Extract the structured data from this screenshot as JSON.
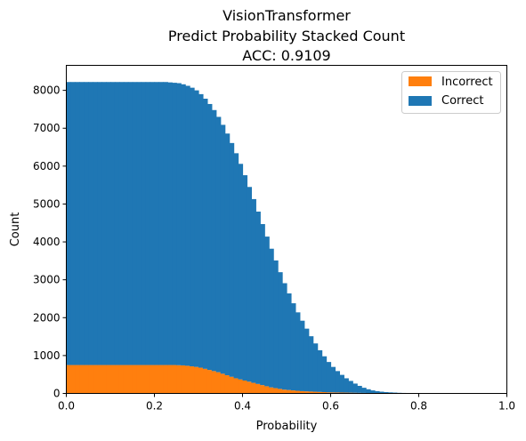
{
  "chart_data": {
    "type": "bar",
    "stacked": true,
    "title_lines": [
      "VisionTransformer",
      "Predict Probability Stacked Count",
      "ACC: 0.9109"
    ],
    "xlabel": "Probability",
    "ylabel": "Count",
    "xlim": [
      0.0,
      1.0
    ],
    "ylim": [
      0,
      8660
    ],
    "xticks": [
      "0.0",
      "0.2",
      "0.4",
      "0.6",
      "0.8",
      "1.0"
    ],
    "yticks": [
      "0",
      "1000",
      "2000",
      "3000",
      "4000",
      "5000",
      "6000",
      "7000",
      "8000"
    ],
    "xtick_values": [
      0.0,
      0.2,
      0.4,
      0.6,
      0.8,
      1.0
    ],
    "ytick_values": [
      0,
      1000,
      2000,
      3000,
      4000,
      5000,
      6000,
      7000,
      8000
    ],
    "grid": false,
    "legend_position": "top-right",
    "bin_width": 0.01,
    "x": [
      0.0,
      0.01,
      0.02,
      0.03,
      0.04,
      0.05,
      0.06,
      0.07,
      0.08,
      0.09,
      0.1,
      0.11,
      0.12,
      0.13,
      0.14,
      0.15,
      0.16,
      0.17,
      0.18,
      0.19,
      0.2,
      0.21,
      0.22,
      0.23,
      0.24,
      0.25,
      0.26,
      0.27,
      0.28,
      0.29,
      0.3,
      0.31,
      0.32,
      0.33,
      0.34,
      0.35,
      0.36,
      0.37,
      0.38,
      0.39,
      0.4,
      0.41,
      0.42,
      0.43,
      0.44,
      0.45,
      0.46,
      0.47,
      0.48,
      0.49,
      0.5,
      0.51,
      0.52,
      0.53,
      0.54,
      0.55,
      0.56,
      0.57,
      0.58,
      0.59,
      0.6,
      0.61,
      0.62,
      0.63,
      0.64,
      0.65,
      0.66,
      0.67,
      0.68,
      0.69,
      0.7,
      0.71,
      0.72,
      0.73,
      0.74,
      0.75,
      0.76,
      0.77,
      0.78,
      0.79,
      0.8,
      0.81,
      0.82,
      0.83,
      0.84,
      0.85,
      0.86,
      0.87,
      0.88,
      0.89,
      0.9,
      0.91,
      0.92,
      0.93,
      0.94,
      0.95,
      0.96,
      0.97,
      0.98,
      0.99
    ],
    "series": [
      {
        "name": "Incorrect",
        "color": "#ff7f0e",
        "values": [
          750,
          750,
          750,
          750,
          750,
          750,
          750,
          750,
          750,
          750,
          750,
          750,
          750,
          750,
          750,
          750,
          750,
          750,
          750,
          750,
          750,
          750,
          750,
          750,
          750,
          745,
          740,
          730,
          715,
          700,
          680,
          650,
          620,
          590,
          560,
          520,
          480,
          440,
          400,
          370,
          340,
          310,
          280,
          250,
          220,
          190,
          160,
          140,
          120,
          100,
          90,
          80,
          70,
          60,
          55,
          50,
          45,
          40,
          35,
          30,
          28,
          26,
          24,
          22,
          20,
          18,
          16,
          14,
          12,
          10,
          8,
          6,
          5,
          4,
          3,
          2,
          2,
          1,
          1,
          1,
          1,
          0,
          0,
          0,
          0,
          0,
          0,
          0,
          0,
          0,
          0,
          0,
          0,
          0,
          0,
          0,
          0,
          0,
          0,
          0
        ]
      },
      {
        "name": "Correct",
        "color": "#1f77b4",
        "values": [
          7470,
          7470,
          7470,
          7470,
          7470,
          7470,
          7470,
          7470,
          7470,
          7470,
          7470,
          7470,
          7470,
          7470,
          7470,
          7470,
          7470,
          7470,
          7470,
          7470,
          7470,
          7470,
          7470,
          7460,
          7450,
          7445,
          7420,
          7390,
          7355,
          7300,
          7220,
          7130,
          7020,
          6890,
          6740,
          6570,
          6380,
          6170,
          5940,
          5690,
          5420,
          5140,
          4850,
          4550,
          4250,
          3950,
          3660,
          3370,
          3080,
          2810,
          2550,
          2300,
          2070,
          1860,
          1655,
          1460,
          1275,
          1100,
          945,
          800,
          672,
          564,
          466,
          378,
          310,
          242,
          184,
          136,
          98,
          70,
          52,
          40,
          30,
          24,
          19,
          14,
          11,
          9,
          7,
          4,
          2,
          1,
          0,
          0,
          0,
          0,
          0,
          0,
          0,
          0,
          0,
          0,
          0,
          0,
          0,
          0,
          0,
          0,
          0,
          0
        ]
      }
    ]
  }
}
